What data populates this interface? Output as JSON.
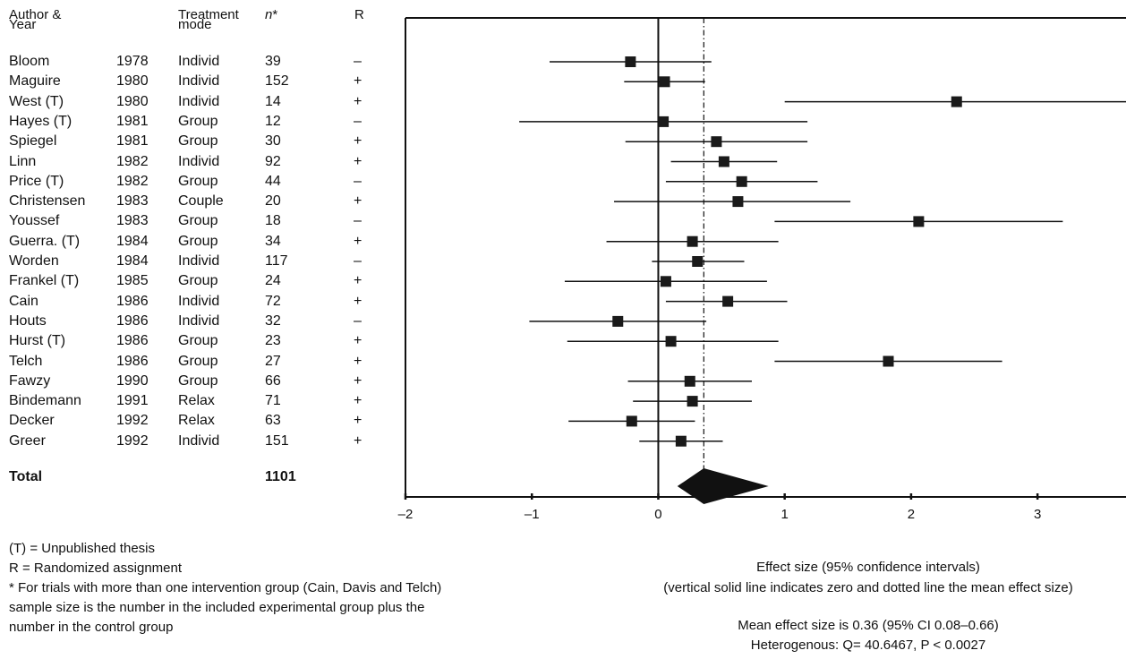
{
  "headers": {
    "author": "Author &",
    "year": "Year",
    "treatment": "Treatment",
    "mode": "mode",
    "n": "n",
    "n_mark": "*",
    "r": "R"
  },
  "total": {
    "label": "Total",
    "n": "1101"
  },
  "chart_data": {
    "type": "forest",
    "xlim": [
      -2,
      3.7
    ],
    "xticks": [
      "–2",
      "–1",
      "0",
      "1",
      "2",
      "3"
    ],
    "xtick_values": [
      -2,
      -1,
      0,
      1,
      2,
      3
    ],
    "mean_effect": 0.36,
    "rows": [
      {
        "author": "Bloom",
        "year": "1978",
        "mode": "Individ",
        "n": "39",
        "r": "–",
        "effect": -0.22,
        "lo": -0.86,
        "hi": 0.42
      },
      {
        "author": "Maguire",
        "year": "1980",
        "mode": "Individ",
        "n": "152",
        "r": "+",
        "effect": 0.05,
        "lo": -0.27,
        "hi": 0.37
      },
      {
        "author": "West   (T)",
        "year": "1980",
        "mode": "Individ",
        "n": "14",
        "r": "+",
        "effect": 2.36,
        "lo": 1.0,
        "hi": 3.7
      },
      {
        "author": "Hayes (T)",
        "year": "1981",
        "mode": "Group",
        "n": "12",
        "r": "–",
        "effect": 0.04,
        "lo": -1.1,
        "hi": 1.18
      },
      {
        "author": "Spiegel",
        "year": "1981",
        "mode": "Group",
        "n": "30",
        "r": "+",
        "effect": 0.46,
        "lo": -0.26,
        "hi": 1.18
      },
      {
        "author": "Linn",
        "year": "1982",
        "mode": "Individ",
        "n": "92",
        "r": "+",
        "effect": 0.52,
        "lo": 0.1,
        "hi": 0.94
      },
      {
        "author": "Price   (T)",
        "year": "1982",
        "mode": "Group",
        "n": "44",
        "r": "–",
        "effect": 0.66,
        "lo": 0.06,
        "hi": 1.26
      },
      {
        "author": "Christensen",
        "year": "1983",
        "mode": "Couple",
        "n": "20",
        "r": "+",
        "effect": 0.63,
        "lo": -0.35,
        "hi": 1.52
      },
      {
        "author": "Youssef",
        "year": "1983",
        "mode": "Group",
        "n": "18",
        "r": "–",
        "effect": 2.06,
        "lo": 0.92,
        "hi": 3.2
      },
      {
        "author": "Guerra. (T)",
        "year": "1984",
        "mode": "Group",
        "n": "34",
        "r": "+",
        "effect": 0.27,
        "lo": -0.41,
        "hi": 0.95
      },
      {
        "author": "Worden",
        "year": "1984",
        "mode": "Individ",
        "n": "117",
        "r": "–",
        "effect": 0.31,
        "lo": -0.05,
        "hi": 0.68
      },
      {
        "author": "Frankel   (T)",
        "year": "1985",
        "mode": "Group",
        "n": "24",
        "r": "+",
        "effect": 0.06,
        "lo": -0.74,
        "hi": 0.86
      },
      {
        "author": "Cain",
        "year": "1986",
        "mode": "Individ",
        "n": "72",
        "r": "+",
        "effect": 0.55,
        "lo": 0.06,
        "hi": 1.02
      },
      {
        "author": "Houts",
        "year": "1986",
        "mode": "Individ",
        "n": "32",
        "r": "–",
        "effect": -0.32,
        "lo": -1.02,
        "hi": 0.38
      },
      {
        "author": "Hurst   (T)",
        "year": "1986",
        "mode": "Group",
        "n": "23",
        "r": "+",
        "effect": 0.1,
        "lo": -0.72,
        "hi": 0.95
      },
      {
        "author": "Telch",
        "year": "1986",
        "mode": "Group",
        "n": "27",
        "r": "+",
        "effect": 1.82,
        "lo": 0.92,
        "hi": 2.72
      },
      {
        "author": "Fawzy",
        "year": "1990",
        "mode": "Group",
        "n": "66",
        "r": "+",
        "effect": 0.25,
        "lo": -0.24,
        "hi": 0.74
      },
      {
        "author": "Bindemann",
        "year": "1991",
        "mode": "Relax",
        "n": "71",
        "r": "+",
        "effect": 0.27,
        "lo": -0.2,
        "hi": 0.74
      },
      {
        "author": "Decker",
        "year": "1992",
        "mode": "Relax",
        "n": "63",
        "r": "+",
        "effect": -0.21,
        "lo": -0.71,
        "hi": 0.29
      },
      {
        "author": "Greer",
        "year": "1992",
        "mode": "Individ",
        "n": "151",
        "r": "+",
        "effect": 0.18,
        "lo": -0.15,
        "hi": 0.51
      }
    ],
    "total": {
      "effect": 0.36,
      "lo": 0.08,
      "hi": 0.66
    }
  },
  "notes": {
    "thesis": "(T) = Unpublished thesis",
    "randomized": "R = Randomized assignment",
    "footnote_1": "* For trials with more than one intervention group (Cain, Davis and Telch)",
    "footnote_2": "sample size is the number in the included experimental group plus the",
    "footnote_3": "number in the control group"
  },
  "xaxis_caption": {
    "line1": "Effect size (95% confidence intervals)",
    "line2": "(vertical solid line indicates zero and dotted line the mean effect size)"
  },
  "summary": {
    "mean": "Mean effect size is 0.36 (95% CI 0.08–0.66)",
    "heterogeneity": "Heterogenous: Q= 40.6467, P < 0.0027"
  }
}
